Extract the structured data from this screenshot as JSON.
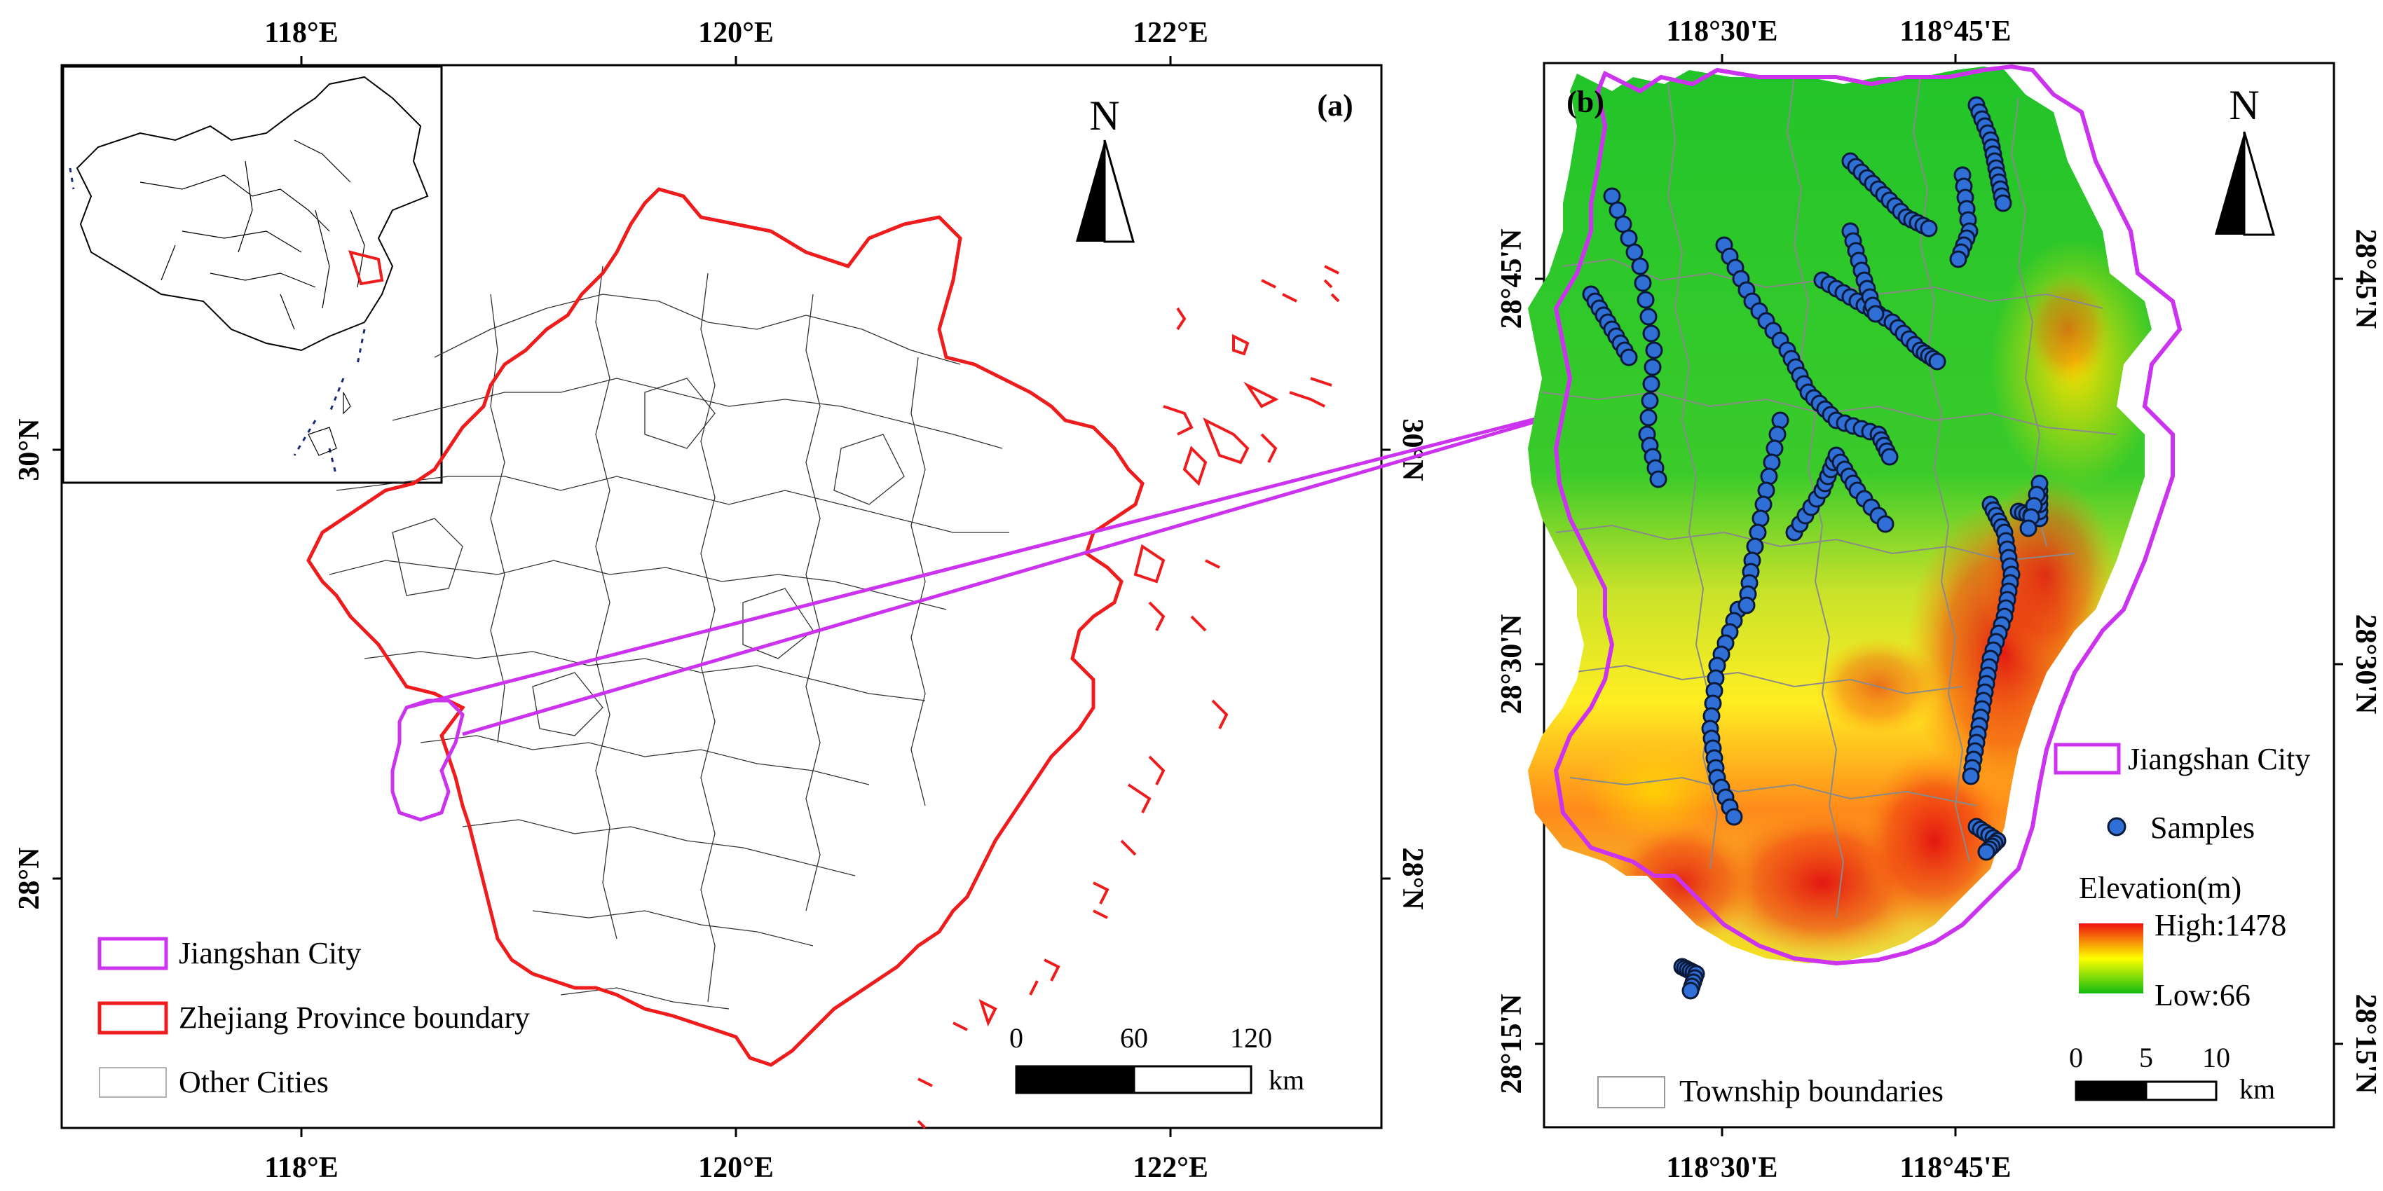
{
  "panel_a": {
    "label": "(a)",
    "top_ticks": [
      "118°E",
      "120°E",
      "122°E"
    ],
    "bottom_ticks": [
      "118°E",
      "120°E",
      "122°E"
    ],
    "left_ticks": [
      "30°N",
      "28°N"
    ],
    "right_ticks": [
      "30°N",
      "28°N"
    ],
    "north": "N",
    "legend": {
      "jiangshan": "Jiangshan City",
      "province": "Zhejiang Province boundary",
      "cities": "Other Cities"
    },
    "scale": {
      "t0": "0",
      "t1": "60",
      "t2": "120",
      "unit": "km"
    }
  },
  "panel_b": {
    "label": "(b)",
    "top_ticks": [
      "118°30'E",
      "118°45'E"
    ],
    "bottom_ticks": [
      "118°30'E",
      "118°45'E"
    ],
    "left_ticks": [
      "28°45'N",
      "28°30'N",
      "28°15'N"
    ],
    "right_ticks": [
      "28°45'N",
      "28°30'N",
      "28°15'N"
    ],
    "north": "N",
    "legend": {
      "jiangshan": "Jiangshan City",
      "samples": "Samples",
      "elevation_title": "Elevation(m)",
      "high": "High:1478",
      "low": "Low:66",
      "township": "Township boundaries"
    },
    "scale": {
      "t0": "0",
      "t1": "5",
      "t2": "10",
      "unit": "km"
    }
  },
  "colors": {
    "province_boundary": "#ee1c1c",
    "jiangshan_boundary": "#cc33ee",
    "connector": "#cc33ee",
    "sample_fill": "#2f6fd6",
    "sample_stroke": "#0a1a3a",
    "elev_low": "#11bb11",
    "elev_mid": "#ffff00",
    "elev_high": "#ee1111"
  }
}
